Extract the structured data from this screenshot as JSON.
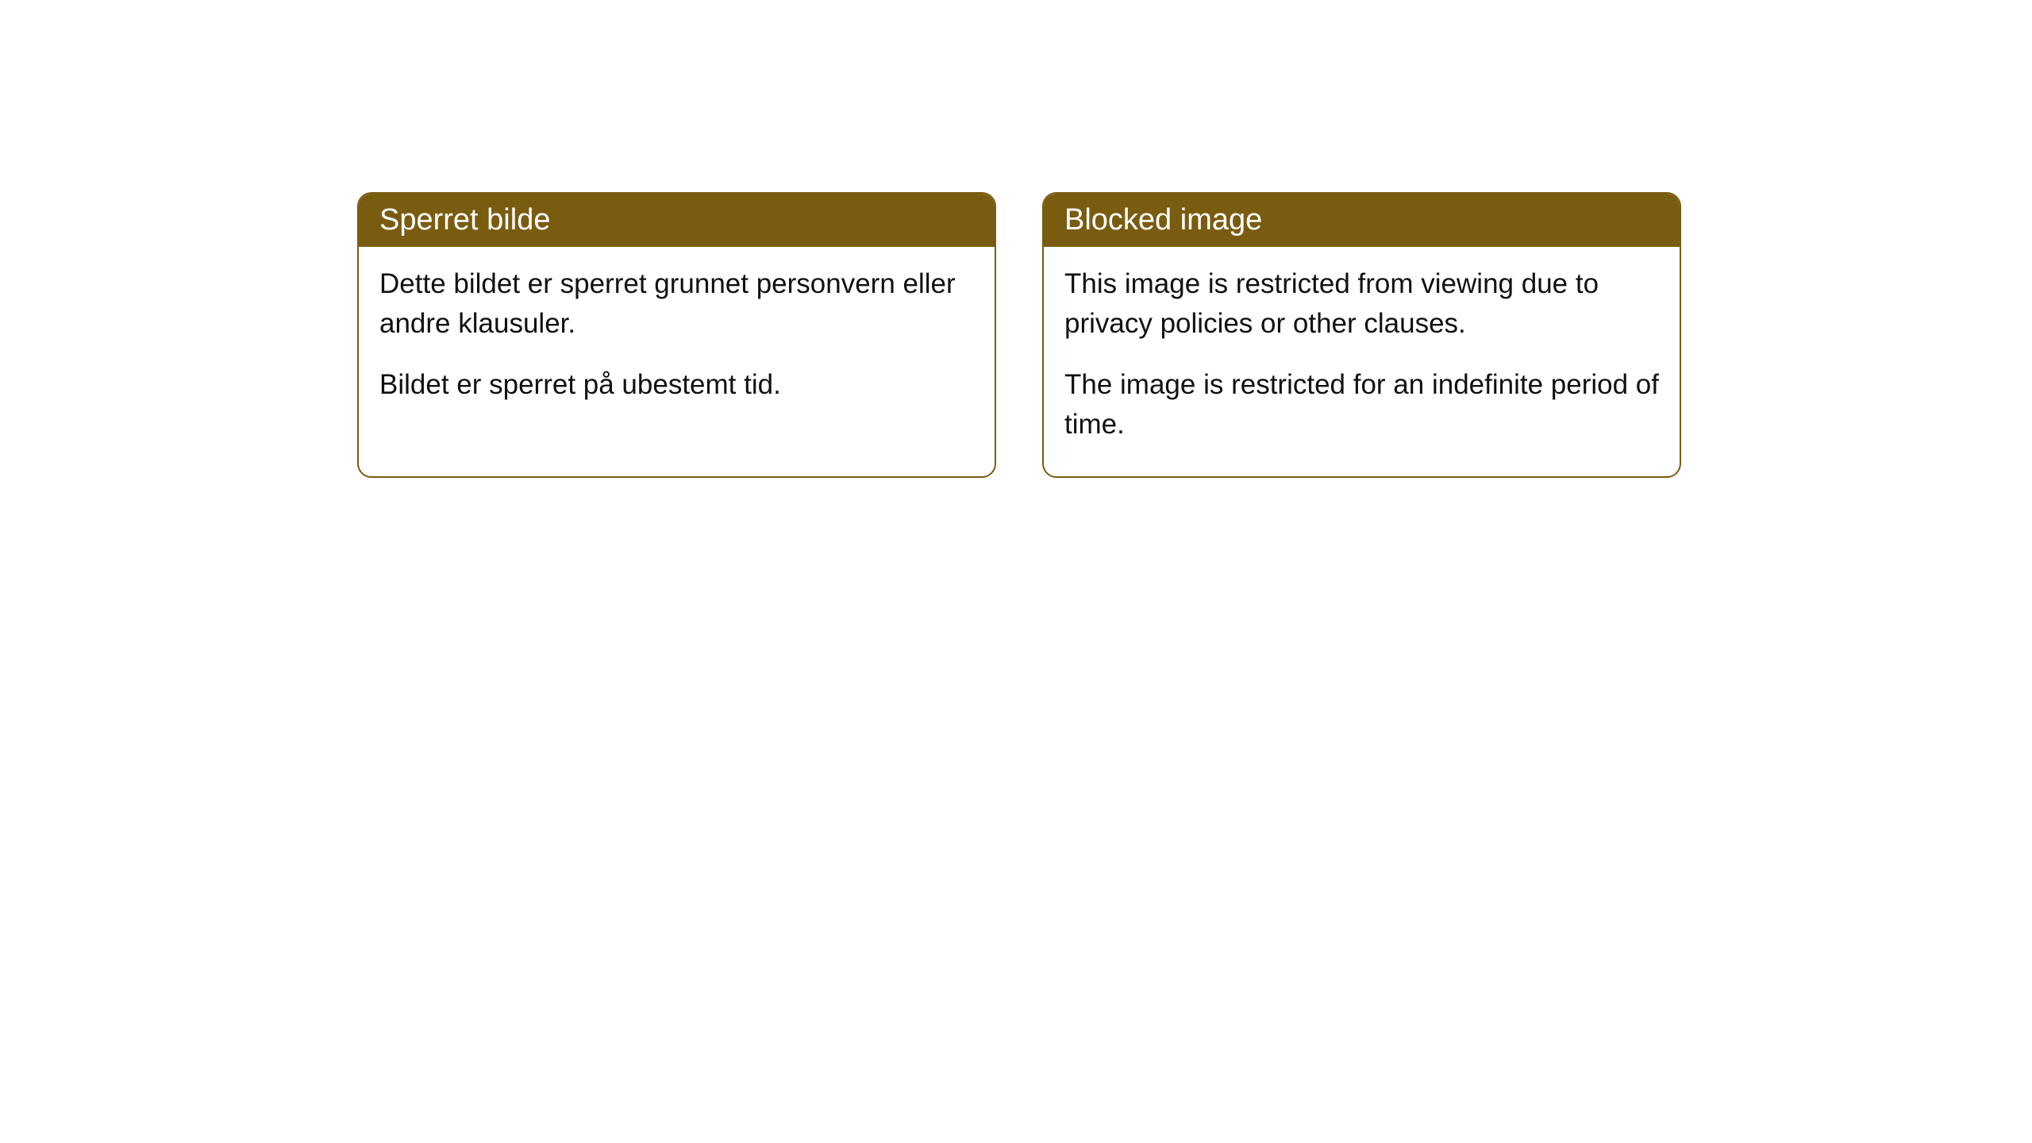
{
  "cards": [
    {
      "title": "Sperret bilde",
      "paragraph1": "Dette bildet er sperret grunnet personvern eller andre klausuler.",
      "paragraph2": "Bildet er sperret på ubestemt tid."
    },
    {
      "title": "Blocked image",
      "paragraph1": "This image is restricted from viewing due to privacy policies or other clauses.",
      "paragraph2": "The image is restricted for an indefinite period of time."
    }
  ],
  "style": {
    "header_bg_color": "#7a5c11",
    "header_text_color": "#ffffff",
    "border_color": "#7a5c11",
    "body_bg_color": "#ffffff",
    "body_text_color": "#111111",
    "border_radius": 18,
    "title_fontsize": 38,
    "body_fontsize": 35
  }
}
